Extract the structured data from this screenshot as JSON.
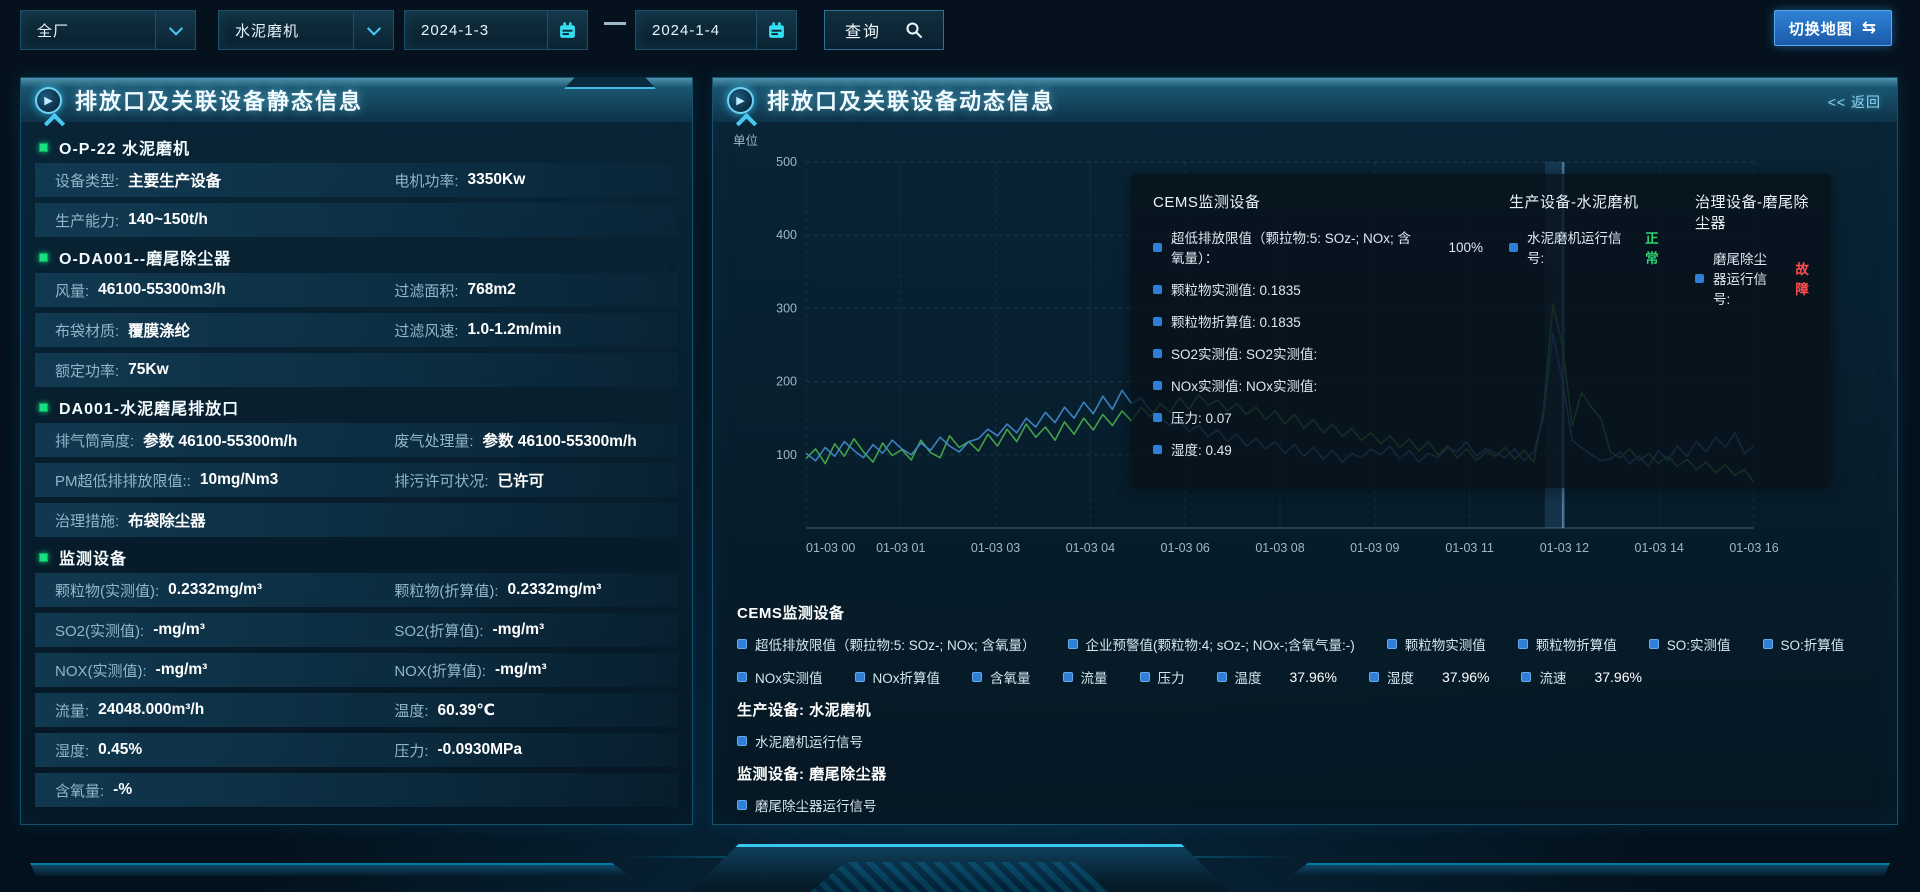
{
  "toolbar": {
    "plant_select": "全厂",
    "device_select": "水泥磨机",
    "date_from": "2024-1-3",
    "date_to": "2024-1-4",
    "query_label": "查询",
    "switch_map_label": "切换地图",
    "switch_map_icon": "⇆"
  },
  "colors": {
    "accent_cyan": "#35dff2",
    "series_green": "#46a94b",
    "series_blue": "#3f87c9",
    "status_ok": "#2ed573",
    "status_fault": "#ff4d4f",
    "map_button_blue": "#2f82d6"
  },
  "left_panel": {
    "title": "排放口及关联设备静态信息",
    "groups": [
      {
        "header": "O-P-22 水泥磨机",
        "rows": [
          [
            {
              "label": "设备类型:",
              "value": "主要生产设备"
            },
            {
              "label": "电机功率:",
              "value": "3350Kw"
            }
          ],
          [
            {
              "label": "生产能力:",
              "value": "140~150t/h"
            }
          ]
        ]
      },
      {
        "header": "O-DA001--磨尾除尘器",
        "rows": [
          [
            {
              "label": "风量:",
              "value": "46100-55300m3/h"
            },
            {
              "label": "过滤面积:",
              "value": "768m2"
            }
          ],
          [
            {
              "label": "布袋材质:",
              "value": "覆膜涤纶"
            },
            {
              "label": "过滤风速:",
              "value": "1.0-1.2m/min"
            }
          ],
          [
            {
              "label": "额定功率:",
              "value": "75Kw"
            }
          ]
        ]
      },
      {
        "header": "DA001-水泥磨尾排放口",
        "rows": [
          [
            {
              "label": "排气筒高度:",
              "value": "参数 46100-55300m/h"
            },
            {
              "label": "废气处理量:",
              "value": "参数 46100-55300m/h"
            }
          ],
          [
            {
              "label": "PM超低排排放限值::",
              "value": "10mg/Nm3"
            },
            {
              "label": "排污许可状况:",
              "value": "已许可"
            }
          ],
          [
            {
              "label": "治理措施:",
              "value": "布袋除尘器"
            }
          ]
        ]
      },
      {
        "header": "监测设备",
        "rows": [
          [
            {
              "label": "颗粒物(实测值):",
              "value": "0.2332mg/m³"
            },
            {
              "label": "颗粒物(折算值):",
              "value": "0.2332mg/m³"
            }
          ],
          [
            {
              "label": "SO2(实测值):",
              "value": "-mg/m³"
            },
            {
              "label": "SO2(折算值):",
              "value": "-mg/m³"
            }
          ],
          [
            {
              "label": "NOX(实测值):",
              "value": "-mg/m³"
            },
            {
              "label": "NOX(折算值):",
              "value": "-mg/m³"
            }
          ],
          [
            {
              "label": "流量:",
              "value": "24048.000m³/h"
            },
            {
              "label": "温度:",
              "value": "60.39℃"
            }
          ],
          [
            {
              "label": "湿度:",
              "value": "0.45%"
            },
            {
              "label": "压力:",
              "value": "-0.0930MPa"
            }
          ],
          [
            {
              "label": "含氧量:",
              "value": "-%"
            }
          ]
        ]
      }
    ]
  },
  "right_panel": {
    "title": "排放口及关联设备动态信息",
    "back_label": "<< 返回",
    "unit_label": "单位",
    "tooltip": {
      "columns": [
        {
          "title": "CEMS监测设备",
          "items": [
            {
              "text": "超低排放限值（颗拉物:5: SOz-; NOx; 含氧量）：",
              "value": "100%"
            },
            {
              "text": "颗粒物实测值: 0.1835"
            },
            {
              "text": "颗粒物折算值: 0.1835"
            },
            {
              "text": "SO2实测值: SO2实测值:"
            },
            {
              "text": "NOx实测值: NOx实测值:"
            },
            {
              "text": "压力: 0.07"
            },
            {
              "text": "湿度: 0.49"
            }
          ]
        },
        {
          "title": "生产设备-水泥磨机",
          "items": [
            {
              "text": "水泥磨机运行信号:",
              "status": "正常",
              "status_color": "#2ed573"
            }
          ]
        },
        {
          "title": "治理设备-磨尾除尘器",
          "items": [
            {
              "text": "磨尾除尘器运行信号:",
              "status": "故障",
              "status_color": "#ff4d4f"
            }
          ]
        }
      ]
    },
    "legend_sections": [
      {
        "title": "CEMS监测设备",
        "items": [
          {
            "label": "超低排放限值（颗拉物:5: SOz-; NOx; 含氧量）"
          },
          {
            "label": "企业预警值(颗粒物:4; sOz-; NOx-;含氧气量:-)"
          },
          {
            "label": "颗粒物实测值"
          },
          {
            "label": "颗粒物折算值"
          },
          {
            "label": "SO:实测值"
          },
          {
            "label": "SO:折算值"
          },
          {
            "label": "NOx实测值"
          },
          {
            "label": "NOx折算值"
          },
          {
            "label": "含氧量"
          },
          {
            "label": "流量"
          },
          {
            "label": "压力"
          },
          {
            "label": "温度",
            "value": "37.96%"
          },
          {
            "label": "湿度",
            "value": "37.96%"
          },
          {
            "label": "流速",
            "value": "37.96%"
          }
        ]
      },
      {
        "title": "生产设备: 水泥磨机",
        "items": [
          {
            "label": "水泥磨机运行信号"
          }
        ]
      },
      {
        "title": "监测设备: 磨尾除尘器",
        "items": [
          {
            "label": "磨尾除尘器运行信号"
          }
        ]
      }
    ]
  },
  "chart_data": {
    "type": "line",
    "ylabel": "单位",
    "ylim": [
      0,
      500
    ],
    "yticks": [
      100,
      200,
      300,
      400,
      500
    ],
    "xticks": [
      "01-03 00",
      "01-03 01",
      "01-03 03",
      "01-03 04",
      "01-03 06",
      "01-03 08",
      "01-03 09",
      "01-03 11",
      "01-03 12",
      "01-03 14",
      "01-03 16"
    ],
    "grid": "dashed",
    "pointer_index": 78,
    "series": [
      {
        "name": "颗粒物实测值",
        "color": "#46a94b",
        "values": [
          95,
          108,
          88,
          115,
          98,
          122,
          104,
          90,
          116,
          99,
          107,
          93,
          120,
          103,
          96,
          126,
          110,
          118,
          105,
          128,
          112,
          135,
          118,
          142,
          124,
          138,
          120,
          145,
          128,
          150,
          134,
          155,
          140,
          160,
          146,
          165,
          152,
          170,
          158,
          178,
          162,
          182,
          168,
          175,
          160,
          170,
          155,
          165,
          148,
          160,
          142,
          155,
          136,
          148,
          130,
          142,
          125,
          136,
          120,
          130,
          115,
          126,
          110,
          122,
          105,
          118,
          100,
          112,
          96,
          108,
          92,
          104,
          98,
          110,
          94,
          106,
          90,
          160,
          305,
          250,
          140,
          185,
          165,
          150,
          104,
          96,
          108,
          92,
          102,
          88,
          98,
          84,
          94,
          80,
          90,
          76,
          86,
          72,
          80,
          62
        ]
      },
      {
        "name": "颗粒物折算值",
        "color": "#3f87c9",
        "values": [
          102,
          92,
          110,
          98,
          118,
          106,
          96,
          114,
          102,
          120,
          108,
          100,
          116,
          106,
          124,
          112,
          104,
          118,
          122,
          135,
          126,
          142,
          130,
          150,
          138,
          158,
          144,
          165,
          150,
          172,
          156,
          180,
          162,
          188,
          170,
          178,
          160,
          150,
          140,
          148,
          132,
          140,
          125,
          134,
          118,
          128,
          112,
          122,
          108,
          118,
          102,
          114,
          98,
          110,
          94,
          106,
          90,
          102,
          96,
          108,
          100,
          112,
          94,
          106,
          90,
          102,
          96,
          110,
          104,
          118,
          98,
          108,
          102,
          96,
          108,
          92,
          104,
          150,
          265,
          200,
          120,
          110,
          100,
          92,
          94,
          104,
          88,
          98,
          84,
          106,
          92,
          112,
          98,
          118,
          104,
          124,
          110,
          130,
          102,
          112
        ]
      }
    ]
  }
}
